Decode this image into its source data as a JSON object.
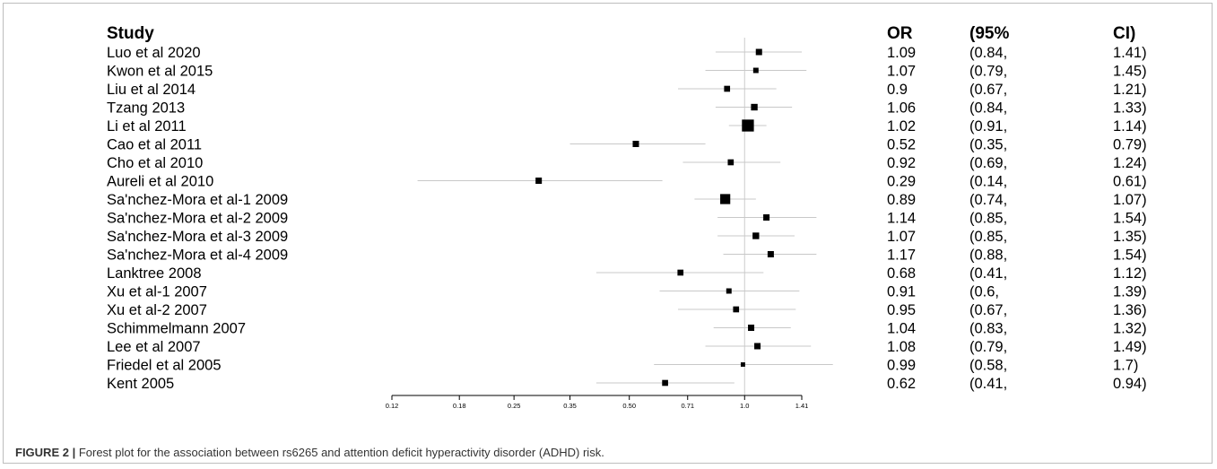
{
  "chart_data": {
    "type": "forest",
    "headers": {
      "study": "Study",
      "or": "OR",
      "ci_lo": "(95%",
      "ci_hi": "CI)"
    },
    "x_scale": "log",
    "x_ticks": [
      "0.12",
      "0.18",
      "0.25",
      "0.35",
      "0.50",
      "0.71",
      "1.0",
      "1.41"
    ],
    "xlim": [
      0.12,
      1.41
    ],
    "reference_line": 1.0,
    "studies": [
      {
        "name": "Luo et al 2020",
        "or": 1.09,
        "lo": 0.84,
        "hi": 1.41,
        "or_text": "1.09",
        "lo_text": "(0.84,",
        "hi_text": "1.41)",
        "weight": 1.0
      },
      {
        "name": "Kwon et al 2015",
        "or": 1.07,
        "lo": 0.79,
        "hi": 1.45,
        "or_text": "1.07",
        "lo_text": "(0.79,",
        "hi_text": "1.45)",
        "weight": 0.85
      },
      {
        "name": "Liu et al 2014",
        "or": 0.9,
        "lo": 0.67,
        "hi": 1.21,
        "or_text": "0.9",
        "lo_text": "(0.67,",
        "hi_text": "1.21)",
        "weight": 0.95
      },
      {
        "name": "Tzang 2013",
        "or": 1.06,
        "lo": 0.84,
        "hi": 1.33,
        "or_text": "1.06",
        "lo_text": "(0.84,",
        "hi_text": "1.33)",
        "weight": 1.05
      },
      {
        "name": "Li et al 2011",
        "or": 1.02,
        "lo": 0.91,
        "hi": 1.14,
        "or_text": "1.02",
        "lo_text": "(0.91,",
        "hi_text": "1.14)",
        "weight": 1.9
      },
      {
        "name": "Cao et al 2011",
        "or": 0.52,
        "lo": 0.35,
        "hi": 0.79,
        "or_text": "0.52",
        "lo_text": "(0.35,",
        "hi_text": "0.79)",
        "weight": 1.0
      },
      {
        "name": "Cho et al 2010",
        "or": 0.92,
        "lo": 0.69,
        "hi": 1.24,
        "or_text": "0.92",
        "lo_text": "(0.69,",
        "hi_text": "1.24)",
        "weight": 0.95
      },
      {
        "name": "Aureli et al 2010",
        "or": 0.29,
        "lo": 0.14,
        "hi": 0.61,
        "or_text": "0.29",
        "lo_text": "(0.14,",
        "hi_text": "0.61)",
        "weight": 1.0
      },
      {
        "name": "Sa'nchez-Mora et al-1 2009",
        "or": 0.89,
        "lo": 0.74,
        "hi": 1.07,
        "or_text": "0.89",
        "lo_text": "(0.74,",
        "hi_text": "1.07)",
        "weight": 1.6
      },
      {
        "name": "Sa'nchez-Mora et al-2 2009",
        "or": 1.14,
        "lo": 0.85,
        "hi": 1.54,
        "or_text": "1.14",
        "lo_text": "(0.85,",
        "hi_text": "1.54)",
        "weight": 1.0
      },
      {
        "name": "Sa'nchez-Mora et al-3 2009",
        "or": 1.07,
        "lo": 0.85,
        "hi": 1.35,
        "or_text": "1.07",
        "lo_text": "(0.85,",
        "hi_text": "1.35)",
        "weight": 1.05
      },
      {
        "name": "Sa'nchez-Mora et al-4 2009",
        "or": 1.17,
        "lo": 0.88,
        "hi": 1.54,
        "or_text": "1.17",
        "lo_text": "(0.88,",
        "hi_text": "1.54)",
        "weight": 1.0
      },
      {
        "name": "Lanktree 2008",
        "or": 0.68,
        "lo": 0.41,
        "hi": 1.12,
        "or_text": "0.68",
        "lo_text": "(0.41,",
        "hi_text": "1.12)",
        "weight": 0.95
      },
      {
        "name": "Xu et al-1 2007",
        "or": 0.91,
        "lo": 0.6,
        "hi": 1.39,
        "or_text": "0.91",
        "lo_text": "(0.6,",
        "hi_text": "1.39)",
        "weight": 0.85
      },
      {
        "name": "Xu et al-2 2007",
        "or": 0.95,
        "lo": 0.67,
        "hi": 1.36,
        "or_text": "0.95",
        "lo_text": "(0.67,",
        "hi_text": "1.36)",
        "weight": 0.95
      },
      {
        "name": "Schimmelmann 2007",
        "or": 1.04,
        "lo": 0.83,
        "hi": 1.32,
        "or_text": "1.04",
        "lo_text": "(0.83,",
        "hi_text": "1.32)",
        "weight": 1.0
      },
      {
        "name": "Lee et al 2007",
        "or": 1.08,
        "lo": 0.79,
        "hi": 1.49,
        "or_text": "1.08",
        "lo_text": "(0.79,",
        "hi_text": "1.49)",
        "weight": 1.0
      },
      {
        "name": "Friedel et al 2005",
        "or": 0.99,
        "lo": 0.58,
        "hi": 1.7,
        "or_text": "0.99",
        "lo_text": "(0.58,",
        "hi_text": "1.7)",
        "weight": 0.7
      },
      {
        "name": "Kent 2005",
        "or": 0.62,
        "lo": 0.41,
        "hi": 0.94,
        "or_text": "0.62",
        "lo_text": "(0.41,",
        "hi_text": "0.94)",
        "weight": 0.95
      }
    ],
    "colors": {
      "text": "#000000",
      "ci_line": "#c8c8c8",
      "ref_line": "#cccccc",
      "marker": "#000000",
      "axis": "#000000"
    }
  },
  "caption": {
    "label": "FIGURE 2 |",
    "text": " Forest plot for the association between rs6265 and attention deficit hyperactivity disorder (ADHD) risk."
  }
}
